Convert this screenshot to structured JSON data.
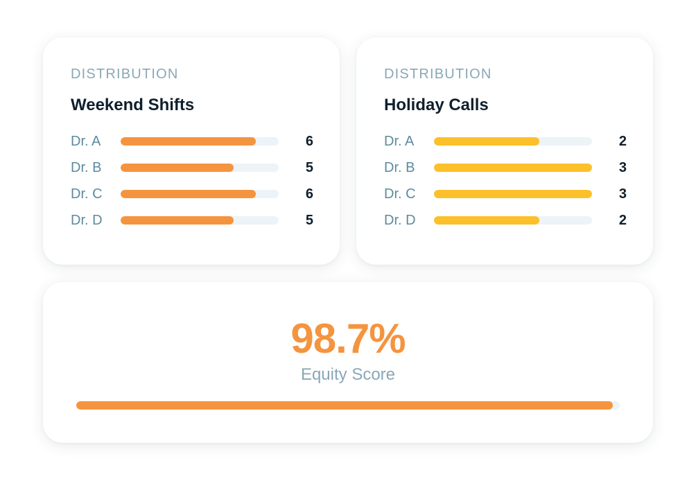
{
  "colors": {
    "weekend_bar": "#f5943f",
    "holiday_bar": "#fcc02a",
    "score_text": "#f5943f",
    "score_bar": "#f5943f",
    "track": "#edf3f7"
  },
  "chart_data": [
    {
      "type": "bar",
      "orientation": "horizontal",
      "eyebrow": "DISTRIBUTION",
      "title": "Weekend Shifts",
      "categories": [
        "Dr. A",
        "Dr. B",
        "Dr. C",
        "Dr. D"
      ],
      "values": [
        6,
        5,
        6,
        5
      ],
      "xlim": [
        0,
        7
      ]
    },
    {
      "type": "bar",
      "orientation": "horizontal",
      "eyebrow": "DISTRIBUTION",
      "title": "Holiday Calls",
      "categories": [
        "Dr. A",
        "Dr. B",
        "Dr. C",
        "Dr. D"
      ],
      "values": [
        2,
        3,
        3,
        2
      ],
      "xlim": [
        0,
        3
      ]
    }
  ],
  "equity": {
    "score_text": "98.7%",
    "label": "Equity Score",
    "value": 98.7
  }
}
